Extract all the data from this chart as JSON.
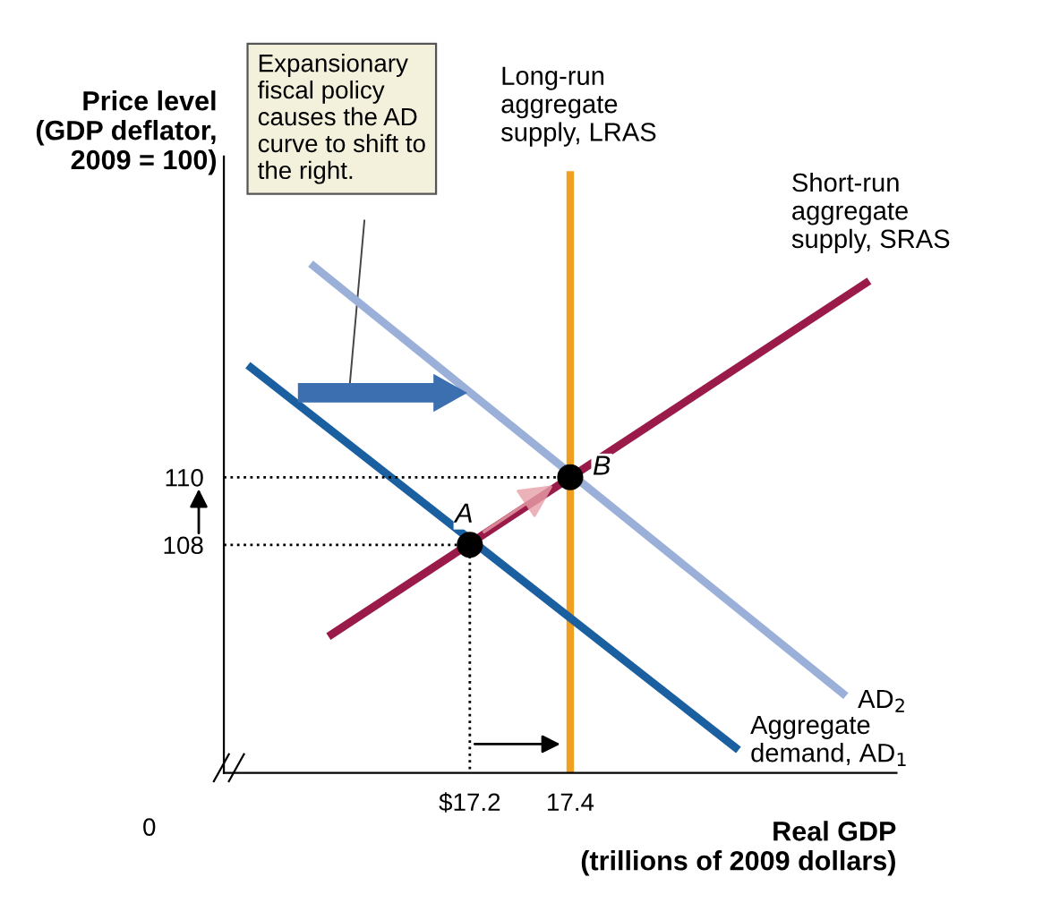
{
  "chart_data": {
    "type": "line",
    "title": null,
    "ylabel": "Price level\n(GDP deflator,\n2009 = 100)",
    "xlabel": "Real GDP\n(trillions of 2009 dollars)",
    "xlim": [
      16.71,
      18.05
    ],
    "ylim": [
      101.25,
      119.5
    ],
    "xticks": [
      {
        "value": 17.2,
        "label": "$17.2"
      },
      17.4
    ],
    "yticks": [
      108,
      110
    ],
    "grid": false,
    "legend": false,
    "marker": "none",
    "series": [
      {
        "name": "Aggregate\ndemand, AD$_{1}$",
        "color": "#1a5fa0",
        "x": [
          16.764,
          17.729
        ],
        "values": [
          113.25,
          102.0
        ]
      },
      {
        "name": "AD$_{2}$",
        "color": "#9ab0d8",
        "x": [
          16.889,
          17.943
        ],
        "values": [
          116.25,
          103.6
        ]
      },
      {
        "name": "Short-run\naggregate\nsupply, SRAS",
        "color": "#9a1a4a",
        "x": [
          16.925,
          17.989
        ],
        "values": [
          105.35,
          115.75
        ]
      },
      {
        "color": "#000000",
        "line_style": "dotted",
        "x": [
          16.71,
          17.2,
          17.2
        ],
        "values": [
          108,
          108,
          101.25
        ]
      },
      {
        "color": "#000000",
        "line_style": "dotted",
        "x": [
          16.71,
          17.4
        ],
        "values": [
          110,
          110
        ]
      },
      {
        "type": "scatter",
        "marker": "circle",
        "color": "#000000",
        "x": [
          17.2,
          17.4
        ],
        "values": [
          108,
          110
        ]
      }
    ],
    "ref_lines": [
      {
        "axis": "x",
        "value": 17.4,
        "label": "Long-run\naggregate\nsupply, LRAS",
        "color": "#f0a020"
      }
    ],
    "annotations": [
      {
        "text": "A",
        "x": 17.2,
        "y": 108
      },
      {
        "text": "B",
        "x": 17.4,
        "y": 110
      },
      "0",
      "Expansionary\nfiscal policy\ncauses the AD\ncurve to shift to\nthe right."
    ]
  }
}
